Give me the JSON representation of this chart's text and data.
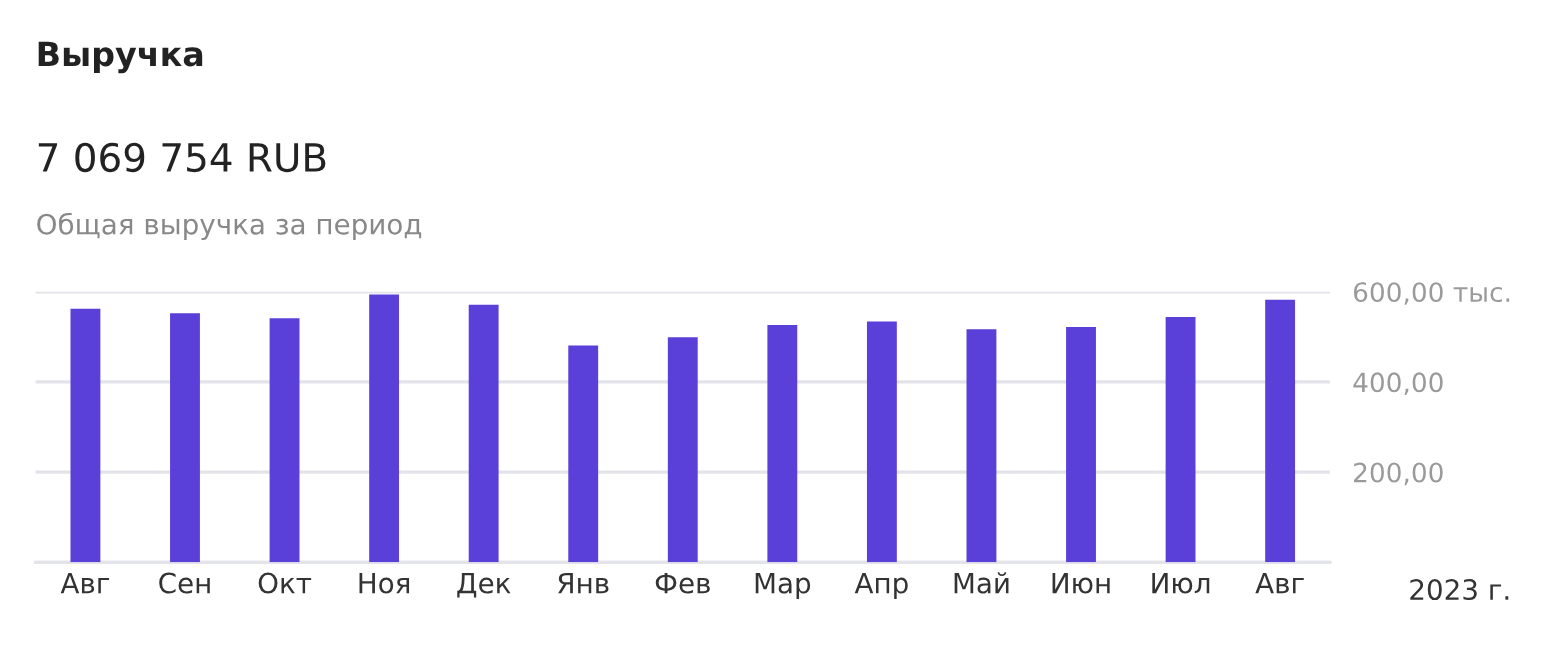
{
  "chart_data": {
    "type": "bar",
    "title": "Выручка",
    "subtitle": "7 069 754 RUB",
    "annotations": [
      "Общая выручка за период",
      "2023 г."
    ],
    "categories": [
      "Авг",
      "Сен",
      "Окт",
      "Ноя",
      "Дек",
      "Янв",
      "Фев",
      "Мар",
      "Апр",
      "Май",
      "Июн",
      "Июл",
      "Авг"
    ],
    "values": [
      562,
      552,
      541,
      594,
      571,
      481,
      499,
      526,
      534,
      517,
      522,
      544,
      582
    ],
    "color": "#5b3fd9",
    "ylim": [
      0,
      600
    ],
    "yticks": [
      {
        "value": 0,
        "label": null
      },
      {
        "value": 200,
        "label": "200,00"
      },
      {
        "value": 400,
        "label": "400,00"
      },
      {
        "value": 600,
        "label": "600,00 тыс."
      }
    ],
    "grid": "y"
  }
}
